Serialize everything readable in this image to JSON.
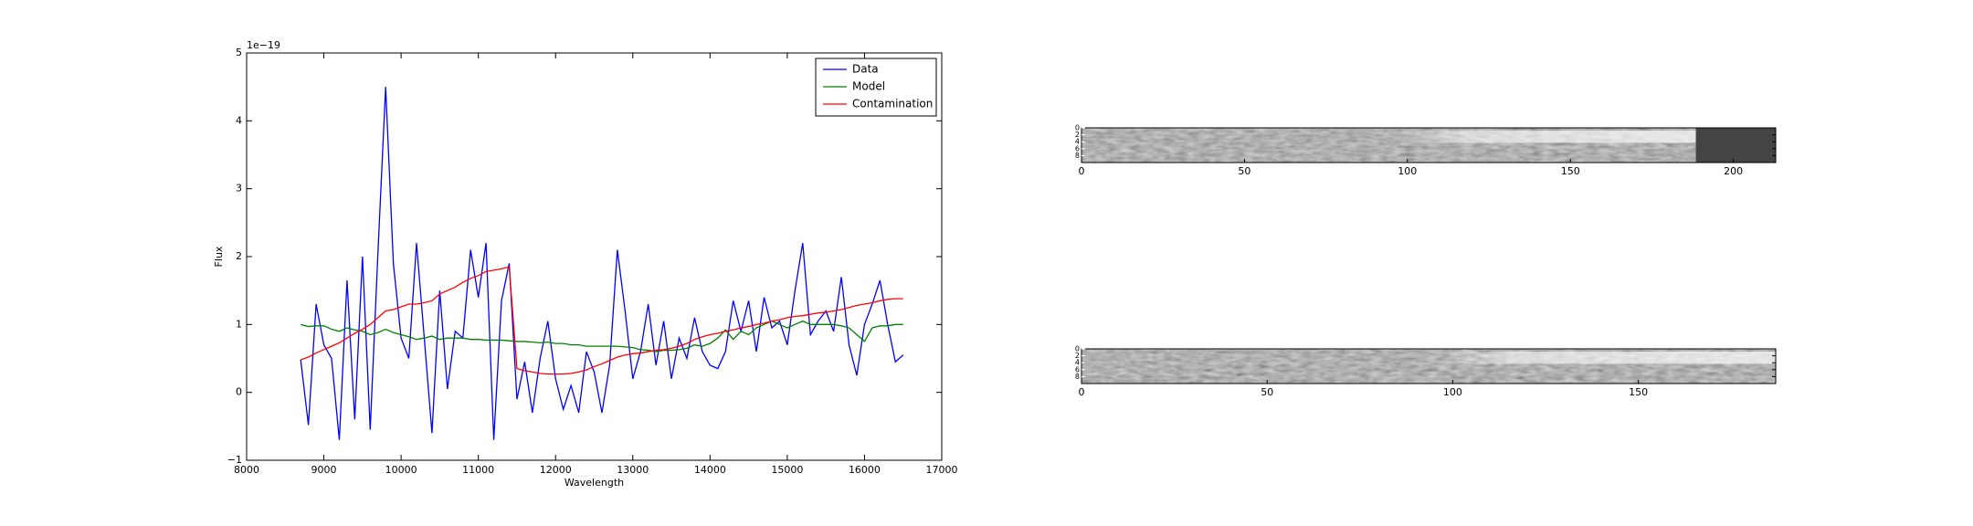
{
  "chart_data": [
    {
      "type": "line",
      "xlabel": "Wavelength",
      "ylabel": "Flux",
      "offset_text": "1e−19",
      "x": [
        8700,
        8800,
        8900,
        9000,
        9100,
        9200,
        9300,
        9400,
        9500,
        9600,
        9700,
        9800,
        9900,
        10000,
        10100,
        10200,
        10300,
        10400,
        10500,
        10600,
        10700,
        10800,
        10900,
        11000,
        11100,
        11200,
        11300,
        11400,
        11500,
        11600,
        11700,
        11800,
        11900,
        12000,
        12100,
        12200,
        12300,
        12400,
        12500,
        12600,
        12700,
        12800,
        12900,
        13000,
        13100,
        13200,
        13300,
        13400,
        13500,
        13600,
        13700,
        13800,
        13900,
        14000,
        14100,
        14200,
        14300,
        14400,
        14500,
        14600,
        14700,
        14800,
        14900,
        15000,
        15100,
        15200,
        15300,
        15400,
        15500,
        15600,
        15700,
        15800,
        15900,
        16000,
        16100,
        16200,
        16300,
        16400,
        16500
      ],
      "series": [
        {
          "name": "Data",
          "color": "#0000ff",
          "values": [
            0.48,
            -0.48,
            1.3,
            0.7,
            0.5,
            -0.7,
            1.65,
            -0.4,
            2.0,
            -0.55,
            2.05,
            4.5,
            1.9,
            0.8,
            0.5,
            2.2,
            0.8,
            -0.6,
            1.5,
            0.05,
            0.9,
            0.8,
            2.1,
            1.4,
            2.2,
            -0.7,
            1.35,
            1.9,
            -0.1,
            0.45,
            -0.3,
            0.5,
            1.05,
            0.2,
            -0.25,
            0.1,
            -0.3,
            0.6,
            0.3,
            -0.3,
            0.4,
            2.1,
            1.2,
            0.2,
            0.6,
            1.3,
            0.4,
            1.05,
            0.2,
            0.8,
            0.5,
            1.1,
            0.6,
            0.4,
            0.35,
            0.6,
            1.35,
            0.9,
            1.35,
            0.6,
            1.4,
            0.95,
            1.05,
            0.7,
            1.5,
            2.2,
            0.85,
            1.05,
            1.2,
            0.9,
            1.7,
            0.7,
            0.25,
            1.0,
            1.3,
            1.65,
            1.0,
            0.45,
            0.55
          ]
        },
        {
          "name": "Model",
          "color": "#008000",
          "values": [
            1.0,
            0.97,
            0.98,
            0.98,
            0.93,
            0.9,
            0.95,
            0.92,
            0.9,
            0.85,
            0.88,
            0.93,
            0.88,
            0.85,
            0.82,
            0.78,
            0.8,
            0.83,
            0.78,
            0.8,
            0.8,
            0.8,
            0.78,
            0.78,
            0.77,
            0.77,
            0.77,
            0.76,
            0.75,
            0.75,
            0.74,
            0.73,
            0.74,
            0.72,
            0.72,
            0.7,
            0.7,
            0.68,
            0.68,
            0.68,
            0.68,
            0.68,
            0.67,
            0.66,
            0.63,
            0.62,
            0.6,
            0.62,
            0.62,
            0.63,
            0.65,
            0.7,
            0.68,
            0.72,
            0.8,
            0.92,
            0.78,
            0.9,
            0.85,
            0.95,
            1.0,
            1.05,
            1.0,
            0.95,
            1.0,
            1.05,
            1.0,
            1.0,
            1.0,
            1.0,
            0.98,
            0.95,
            0.85,
            0.75,
            0.95,
            0.98,
            0.98,
            1.0,
            1.0
          ]
        },
        {
          "name": "Contamination",
          "color": "#ff0000",
          "values": [
            0.48,
            0.52,
            0.58,
            0.63,
            0.68,
            0.73,
            0.8,
            0.87,
            0.93,
            1.0,
            1.1,
            1.2,
            1.22,
            1.26,
            1.3,
            1.3,
            1.32,
            1.35,
            1.45,
            1.5,
            1.55,
            1.62,
            1.68,
            1.72,
            1.78,
            1.8,
            1.82,
            1.85,
            0.35,
            0.32,
            0.3,
            0.28,
            0.27,
            0.27,
            0.27,
            0.28,
            0.3,
            0.33,
            0.38,
            0.42,
            0.47,
            0.52,
            0.55,
            0.57,
            0.58,
            0.6,
            0.62,
            0.63,
            0.65,
            0.68,
            0.72,
            0.78,
            0.82,
            0.85,
            0.87,
            0.9,
            0.92,
            0.95,
            0.97,
            1.0,
            1.02,
            1.05,
            1.07,
            1.1,
            1.12,
            1.13,
            1.15,
            1.17,
            1.18,
            1.2,
            1.22,
            1.25,
            1.28,
            1.3,
            1.32,
            1.35,
            1.37,
            1.38,
            1.38
          ]
        }
      ],
      "xlim": [
        8000,
        17000
      ],
      "xticks": [
        8000,
        9000,
        10000,
        11000,
        12000,
        13000,
        14000,
        15000,
        16000,
        17000
      ],
      "ylim": [
        -1,
        5
      ],
      "yticks": [
        {
          "value": -1,
          "label": "−1"
        },
        0,
        1,
        2,
        3,
        4,
        5
      ],
      "legend": "upper right"
    },
    {
      "type": "image",
      "xlim": [
        0,
        213
      ],
      "xticks": [
        0,
        50,
        100,
        150,
        200
      ],
      "ylim": [
        10,
        0
      ],
      "yticks": [
        0,
        2,
        4,
        6,
        8
      ]
    },
    {
      "type": "image",
      "xlim": [
        0,
        187
      ],
      "xticks": [
        0,
        50,
        100,
        150
      ],
      "ylim": [
        10,
        0
      ],
      "yticks": [
        0,
        2,
        4,
        6,
        8
      ]
    }
  ]
}
